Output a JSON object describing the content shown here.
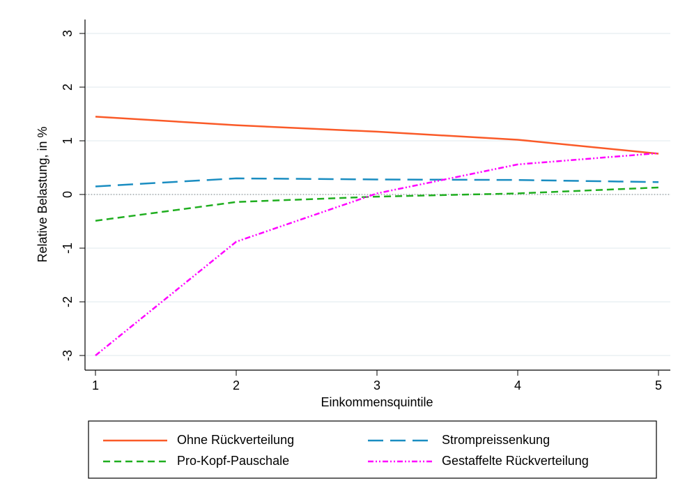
{
  "chart_data": {
    "type": "line",
    "x_label": "Einkommensquintile",
    "y_label": "Relative Belastung, in %",
    "x": [
      1,
      2,
      3,
      4,
      5
    ],
    "xlim": [
      1,
      5
    ],
    "xticks": [
      1,
      2,
      3,
      4,
      5
    ],
    "ylim": [
      -3,
      3
    ],
    "yticks": [
      -3,
      -2,
      -1,
      0,
      1,
      2,
      3
    ],
    "grid": true,
    "reference_line": 0,
    "series": [
      {
        "name": "Ohne Rückverteilung",
        "color": "#fa5a28",
        "dash": "solid",
        "values": [
          1.45,
          1.29,
          1.17,
          1.02,
          0.76
        ]
      },
      {
        "name": "Strompreissenkung",
        "color": "#1a8dc1",
        "dash": "long-dash",
        "values": [
          0.15,
          0.3,
          0.28,
          0.27,
          0.23
        ]
      },
      {
        "name": "Pro-Kopf-Pauschale",
        "color": "#1fae1f",
        "dash": "dash",
        "values": [
          -0.49,
          -0.14,
          -0.04,
          0.02,
          0.13
        ]
      },
      {
        "name": "Gestaffelte Rückverteilung",
        "color": "#ff00ff",
        "dash": "dash-dot",
        "values": [
          -3.0,
          -0.88,
          0.02,
          0.56,
          0.77
        ]
      }
    ]
  }
}
